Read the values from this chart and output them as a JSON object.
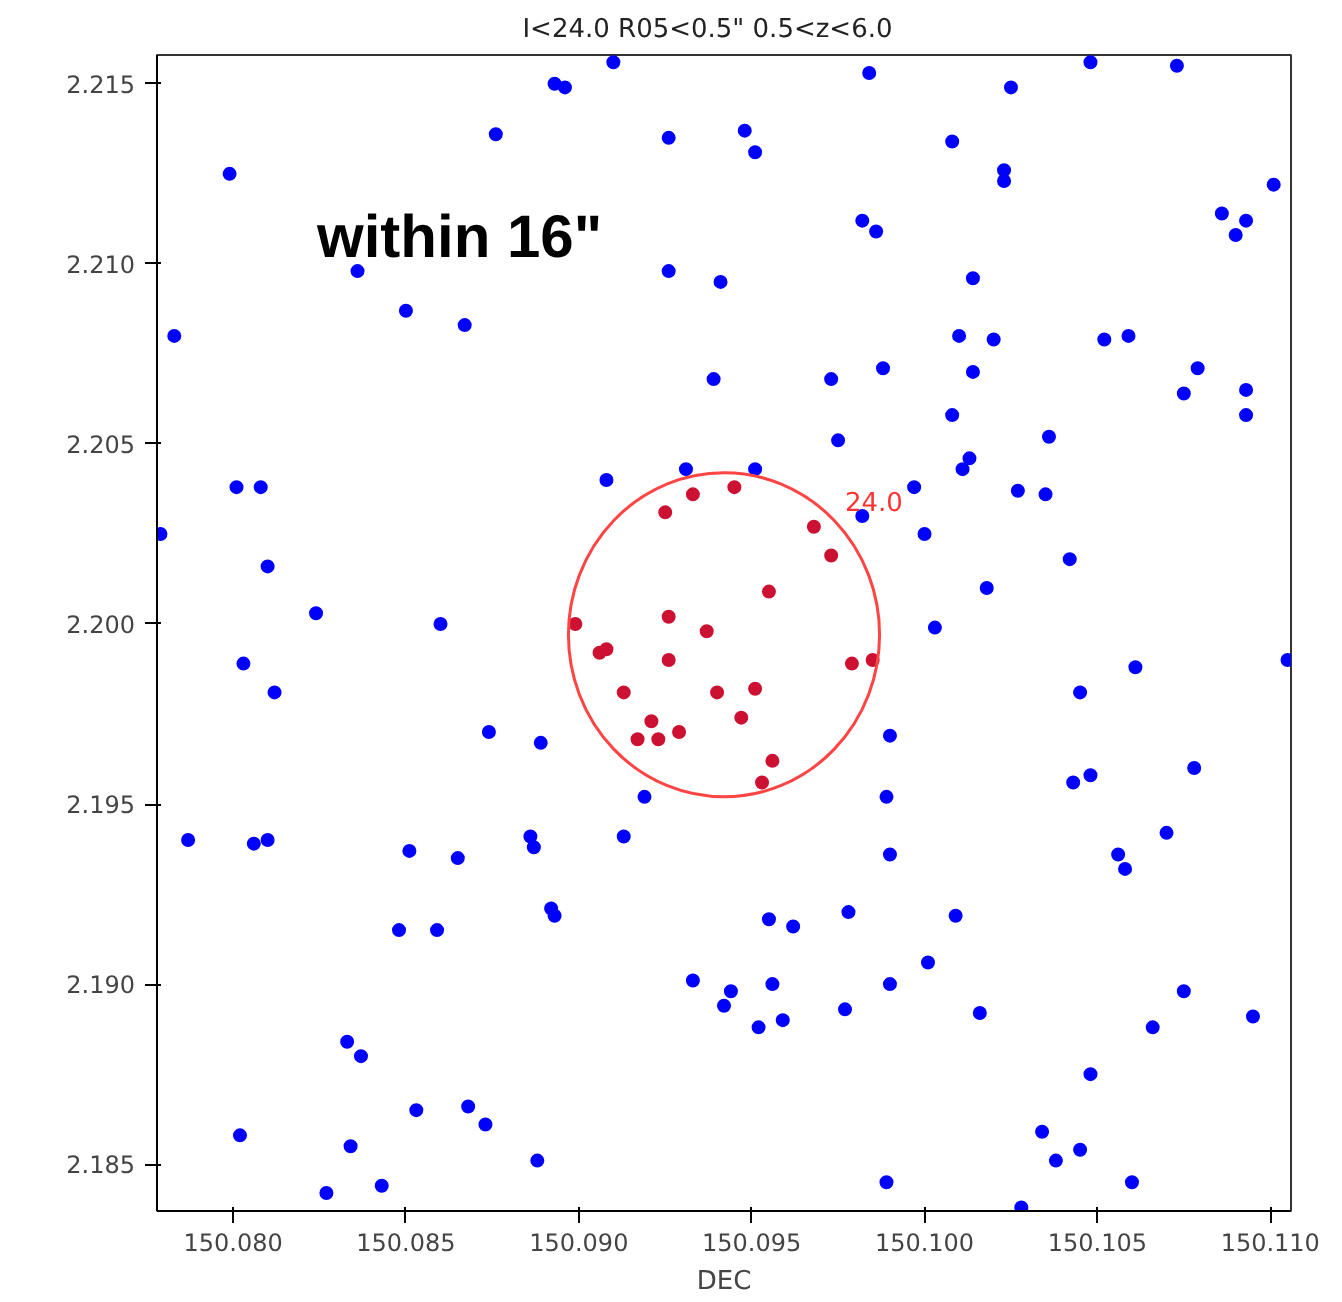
{
  "chart_data": {
    "type": "scatter",
    "title": "I<24.0   R05<0.5\"   0.5<z<6.0",
    "xlabel": "DEC",
    "xlim": [
      150.0778,
      150.1106
    ],
    "ylim": [
      2.1837,
      2.2158
    ],
    "xticks": [
      {
        "value": 150.08,
        "label": "150.080"
      },
      {
        "value": 150.085,
        "label": "150.085"
      },
      {
        "value": 150.09,
        "label": "150.090"
      },
      {
        "value": 150.095,
        "label": "150.095"
      },
      {
        "value": 150.1,
        "label": "150.100"
      },
      {
        "value": 150.105,
        "label": "150.105"
      },
      {
        "value": 150.11,
        "label": "150.110"
      }
    ],
    "yticks": [
      2.185,
      {
        "value": 2.19,
        "label": "2.190"
      },
      2.195,
      {
        "value": 2.2,
        "label": "2.200"
      },
      2.205,
      {
        "value": 2.21,
        "label": "2.210"
      },
      2.215
    ],
    "grid": false,
    "marker": "circle",
    "annotations": [
      "within 16\"",
      "24.0"
    ],
    "series": [
      {
        "color": "#0000ff",
        "x": [
          150.091,
          150.0893,
          150.0896,
          150.0876,
          150.0926,
          150.0799,
          150.0836,
          150.0926,
          150.085,
          150.0867,
          150.0783,
          150.0908,
          150.0931,
          150.0801,
          150.0808,
          150.0779,
          150.081,
          150.0824,
          150.086,
          150.1048,
          150.1073,
          150.0984,
          150.1025,
          150.0948,
          150.0951,
          150.1008,
          150.1023,
          150.1023,
          150.1101,
          150.0982,
          150.0986,
          150.1086,
          150.1093,
          150.109,
          150.0941,
          150.1014,
          150.101,
          150.102,
          150.1052,
          150.1059,
          150.0939,
          150.0973,
          150.0988,
          150.1014,
          150.1079,
          150.1075,
          150.1093,
          150.1093,
          150.1008,
          150.1036,
          150.0975,
          150.1013,
          150.1011,
          150.0951,
          150.0997,
          150.1027,
          150.1035,
          150.0982,
          150.1,
          150.1042,
          150.1018,
          150.1003,
          150.0803,
          150.0812,
          150.0874,
          150.0889,
          150.0919,
          150.0787,
          150.0806,
          150.081,
          150.0851,
          150.0865,
          150.0886,
          150.0887,
          150.0913,
          150.0892,
          150.0893,
          150.0848,
          150.0859,
          150.0833,
          150.0837,
          150.0853,
          150.0868,
          150.0873,
          150.0802,
          150.0834,
          150.0888,
          150.0843,
          150.0827,
          150.1061,
          150.1045,
          150.1105,
          150.099,
          150.1043,
          150.1048,
          150.1078,
          150.0989,
          150.107,
          150.099,
          150.1056,
          150.1058,
          150.0955,
          150.0962,
          150.0978,
          150.1009,
          150.0933,
          150.0944,
          150.0942,
          150.0956,
          150.0952,
          150.0959,
          150.0977,
          150.099,
          150.1001,
          150.1016,
          150.1075,
          150.1066,
          150.1095,
          150.1048,
          150.1034,
          150.1038,
          150.1045,
          150.0989,
          150.106,
          150.1028
        ],
        "values": [
          2.2156,
          2.215,
          2.2149,
          2.2136,
          2.2135,
          2.2125,
          2.2098,
          2.2098,
          2.2087,
          2.2083,
          2.208,
          2.204,
          2.2043,
          2.2038,
          2.2038,
          2.2025,
          2.2016,
          2.2003,
          2.2,
          2.2156,
          2.2155,
          2.2153,
          2.2149,
          2.2137,
          2.2131,
          2.2134,
          2.2126,
          2.2123,
          2.2122,
          2.2112,
          2.2109,
          2.2114,
          2.2112,
          2.2108,
          2.2095,
          2.2096,
          2.208,
          2.2079,
          2.2079,
          2.208,
          2.2068,
          2.2068,
          2.2071,
          2.207,
          2.2071,
          2.2064,
          2.2065,
          2.2058,
          2.2058,
          2.2052,
          2.2051,
          2.2046,
          2.2043,
          2.2043,
          2.2038,
          2.2037,
          2.2036,
          2.203,
          2.2025,
          2.2018,
          2.201,
          2.1999,
          2.1989,
          2.1981,
          2.197,
          2.1967,
          2.1952,
          2.194,
          2.1939,
          2.194,
          2.1937,
          2.1935,
          2.1941,
          2.1938,
          2.1941,
          2.1921,
          2.1919,
          2.1915,
          2.1915,
          2.1884,
          2.188,
          2.1865,
          2.1866,
          2.1861,
          2.1858,
          2.1855,
          2.1851,
          2.1844,
          2.1842,
          2.1988,
          2.1981,
          2.199,
          2.1969,
          2.1956,
          2.1958,
          2.196,
          2.1952,
          2.1942,
          2.1936,
          2.1936,
          2.1932,
          2.1918,
          2.1916,
          2.192,
          2.1919,
          2.1901,
          2.1898,
          2.1894,
          2.19,
          2.1888,
          2.189,
          2.1893,
          2.19,
          2.1906,
          2.1892,
          2.1898,
          2.1888,
          2.1891,
          2.1875,
          2.1859,
          2.1851,
          2.1854,
          2.1845,
          2.1845,
          2.1838
        ]
      },
      {
        "color": "#cc1133",
        "x": [
          150.0925,
          150.0899,
          150.0926,
          150.0933,
          150.0945,
          150.0968,
          150.0973,
          150.0955,
          150.0937,
          150.0906,
          150.0908,
          150.0926,
          150.0913,
          150.0921,
          150.0917,
          150.0923,
          150.0929,
          150.094,
          150.0951,
          150.0947,
          150.0979,
          150.0985,
          150.0956,
          150.0953
        ],
        "values": [
          2.2031,
          2.2,
          2.2002,
          2.2036,
          2.2038,
          2.2027,
          2.2019,
          2.2009,
          2.1998,
          2.1992,
          2.1993,
          2.199,
          2.1981,
          2.1973,
          2.1968,
          2.1968,
          2.197,
          2.1981,
          2.1982,
          2.1974,
          2.1989,
          2.199,
          2.1962,
          2.1956
        ]
      }
    ]
  }
}
